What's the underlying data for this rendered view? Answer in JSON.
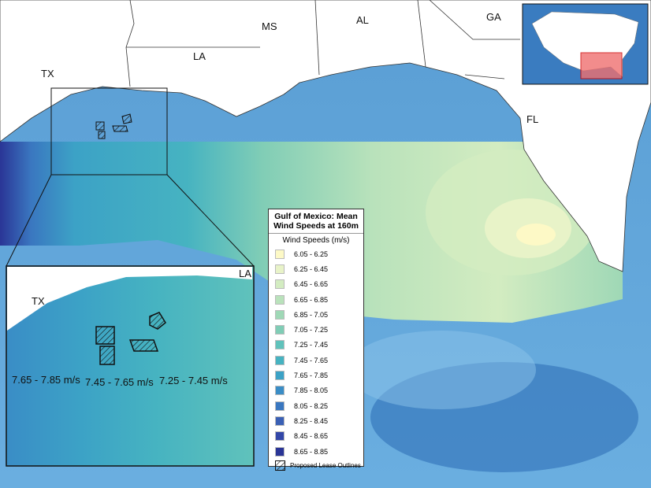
{
  "map_labels": [
    "TX",
    "LA",
    "MS",
    "AL",
    "GA",
    "FL"
  ],
  "inset": {
    "labels": [
      "TX",
      "LA"
    ],
    "annotations": [
      "7.65 - 7.85 m/s",
      "7.45 - 7.65 m/s",
      "7.25 - 7.45 m/s"
    ]
  },
  "legend": {
    "title": "Gulf of Mexico: Mean Wind Speeds at 160m",
    "subtitle": "Wind Speeds (m/s)",
    "items": [
      {
        "label": "6.05 - 6.25",
        "color": "#fdf9c6"
      },
      {
        "label": "6.25 - 6.45",
        "color": "#e8f3c8"
      },
      {
        "label": "6.45 - 6.65",
        "color": "#d3ecc1"
      },
      {
        "label": "6.65 - 6.85",
        "color": "#b9e2bb"
      },
      {
        "label": "6.85 - 7.05",
        "color": "#9fd8b6"
      },
      {
        "label": "7.05 - 7.25",
        "color": "#80cdb6"
      },
      {
        "label": "7.25 - 7.45",
        "color": "#60c2bb"
      },
      {
        "label": "7.45 - 7.65",
        "color": "#46b3c1"
      },
      {
        "label": "7.65 - 7.85",
        "color": "#3ca2c6"
      },
      {
        "label": "7.85 - 8.05",
        "color": "#3a8dc6"
      },
      {
        "label": "8.05 - 8.25",
        "color": "#3a77c0"
      },
      {
        "label": "8.25 - 8.45",
        "color": "#3a60b5"
      },
      {
        "label": "8.45 - 8.65",
        "color": "#3347a8"
      },
      {
        "label": "8.65 - 8.85",
        "color": "#2a3596"
      }
    ],
    "hatch_label": "Proposed Lease Outlines"
  }
}
